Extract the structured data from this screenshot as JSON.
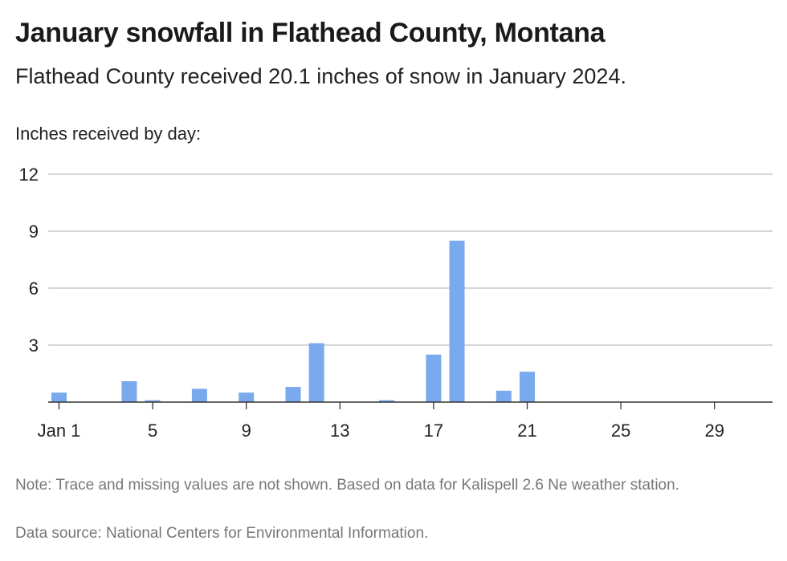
{
  "title": "January snowfall in Flathead County, Montana",
  "subtitle": "Flathead County received 20.1 inches of snow in January 2024.",
  "axis_note": "Inches received by day:",
  "note": "Note: Trace and missing values are not shown. Based on data for Kalispell 2.6 Ne weather station.",
  "source": "Data source: National Centers for Environmental Information.",
  "colors": {
    "bar": "#7aaaee",
    "grid": "#bdbdbd",
    "axis": "#333333"
  },
  "chart_data": {
    "type": "bar",
    "x": [
      1,
      2,
      3,
      4,
      5,
      6,
      7,
      8,
      9,
      10,
      11,
      12,
      13,
      14,
      15,
      16,
      17,
      18,
      19,
      20,
      21,
      22,
      23,
      24,
      25,
      26,
      27,
      28,
      29,
      30,
      31
    ],
    "values": [
      0.5,
      0,
      0,
      1.1,
      0.1,
      0,
      0.7,
      0,
      0.5,
      0,
      0.8,
      3.1,
      0,
      0,
      0.1,
      0,
      2.5,
      8.5,
      0,
      0.6,
      1.6,
      0,
      0,
      0,
      0,
      0,
      0,
      0,
      0,
      0,
      0
    ],
    "x_ticks": [
      1,
      5,
      9,
      13,
      17,
      21,
      25,
      29
    ],
    "x_tick_labels": [
      "Jan 1",
      "5",
      "9",
      "13",
      "17",
      "21",
      "25",
      "29"
    ],
    "y_ticks": [
      0,
      3,
      6,
      9,
      12
    ],
    "y_tick_labels": [
      "",
      "3",
      "6",
      "9",
      "12"
    ],
    "ylim": [
      0,
      12
    ],
    "xlabel": "",
    "ylabel": "Inches received by day:",
    "grid": true
  }
}
